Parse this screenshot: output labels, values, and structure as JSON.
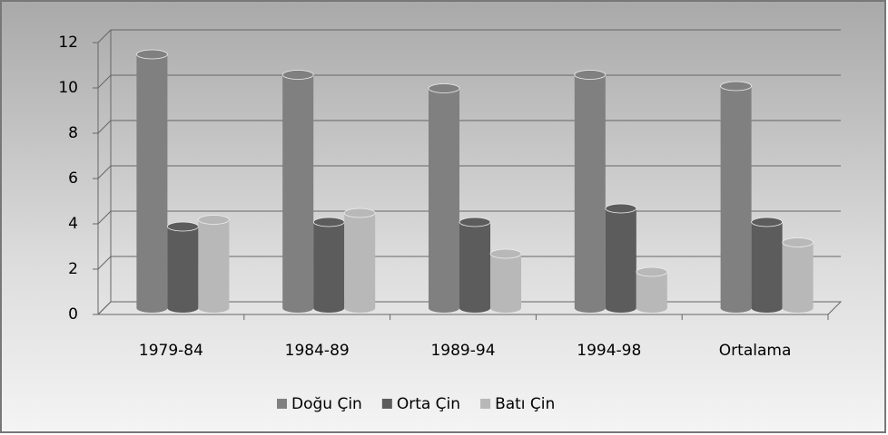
{
  "chart_data": {
    "type": "bar3d",
    "categories": [
      "1979-84",
      "1984-89",
      "1989-94",
      "1994-98",
      "Ortalama"
    ],
    "series": [
      {
        "name": "Doğu Çin",
        "color": "#808080",
        "values": [
          11.2,
          10.3,
          9.7,
          10.3,
          9.8
        ]
      },
      {
        "name": "Orta Çin",
        "color": "#5c5c5c",
        "values": [
          3.6,
          3.8,
          3.8,
          4.4,
          3.8
        ]
      },
      {
        "name": "Batı Çin",
        "color": "#b8b8b8",
        "values": [
          3.9,
          4.2,
          2.4,
          1.6,
          2.9
        ]
      }
    ],
    "ylim": [
      0,
      12
    ],
    "yticks": [
      0,
      2,
      4,
      6,
      8,
      10,
      12
    ],
    "grid": true,
    "legend": "bottom"
  }
}
